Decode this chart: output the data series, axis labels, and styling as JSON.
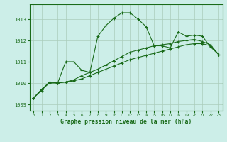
{
  "background_color": "#cceee8",
  "grid_color": "#aaccbb",
  "line_color": "#1a6b1a",
  "xlabel": "Graphe pression niveau de la mer (hPa)",
  "xlim": [
    -0.5,
    23.5
  ],
  "ylim": [
    1008.7,
    1013.7
  ],
  "yticks": [
    1009,
    1010,
    1011,
    1012,
    1013
  ],
  "xticks": [
    0,
    1,
    2,
    3,
    4,
    5,
    6,
    7,
    8,
    9,
    10,
    11,
    12,
    13,
    14,
    15,
    16,
    17,
    18,
    19,
    20,
    21,
    22,
    23
  ],
  "series1": [
    1009.3,
    1009.7,
    1010.0,
    1010.0,
    1011.0,
    1011.0,
    1010.6,
    1010.5,
    1012.2,
    1012.7,
    1013.05,
    1013.3,
    1013.3,
    1013.0,
    1012.65,
    1011.75,
    1011.75,
    1011.65,
    1012.4,
    1012.2,
    1012.25,
    1012.2,
    1011.7,
    1011.35
  ],
  "series2": [
    1009.3,
    1009.7,
    1010.05,
    1010.0,
    1010.05,
    1010.15,
    1010.35,
    1010.5,
    1010.65,
    1010.85,
    1011.05,
    1011.25,
    1011.45,
    1011.55,
    1011.65,
    1011.75,
    1011.8,
    1011.85,
    1011.95,
    1012.0,
    1012.05,
    1011.95,
    1011.8,
    1011.35
  ],
  "series3": [
    1009.3,
    1009.65,
    1010.05,
    1010.0,
    1010.05,
    1010.1,
    1010.2,
    1010.35,
    1010.5,
    1010.65,
    1010.8,
    1010.95,
    1011.1,
    1011.2,
    1011.3,
    1011.4,
    1011.5,
    1011.6,
    1011.7,
    1011.8,
    1011.85,
    1011.85,
    1011.75,
    1011.35
  ]
}
